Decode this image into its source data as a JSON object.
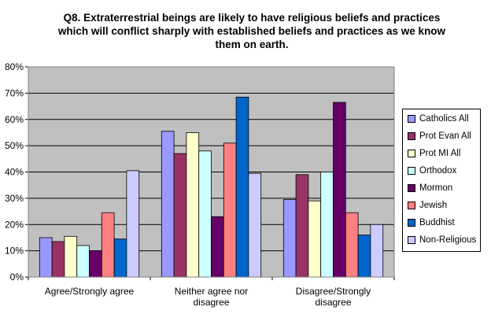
{
  "chart_data": {
    "type": "bar",
    "title_lines": [
      "Q8. Extraterrestrial beings are likely to have religious beliefs and practices",
      "which will conflict sharply with established beliefs and practices as we know",
      "them on earth."
    ],
    "categories": [
      [
        "Agree/Strongly agree"
      ],
      [
        "Neither agree nor",
        "disagree"
      ],
      [
        "Disagree/Strongly",
        "disagree"
      ]
    ],
    "ylim": [
      0,
      80
    ],
    "yticks": [
      0,
      10,
      20,
      30,
      40,
      50,
      60,
      70,
      80
    ],
    "ytick_labels": [
      "0%",
      "10%",
      "20%",
      "30%",
      "40%",
      "50%",
      "60%",
      "70%",
      "80%"
    ],
    "grid": true,
    "plot_background": "#c0c0c0",
    "legend_position": "right",
    "series": [
      {
        "name": "Catholics All",
        "color": "#9999ff",
        "values": [
          15,
          55.5,
          29.5
        ]
      },
      {
        "name": "Prot Evan All",
        "color": "#993366",
        "values": [
          13.5,
          47,
          39
        ]
      },
      {
        "name": "Prot MI All",
        "color": "#ffffcc",
        "values": [
          15.5,
          55,
          29
        ]
      },
      {
        "name": "Orthodox",
        "color": "#ccffff",
        "values": [
          12,
          48,
          40
        ]
      },
      {
        "name": "Mormon",
        "color": "#660066",
        "values": [
          10,
          23,
          66.5
        ]
      },
      {
        "name": "Jewish",
        "color": "#ff8080",
        "values": [
          24.5,
          51,
          24.5
        ]
      },
      {
        "name": "Buddhist",
        "color": "#0066cc",
        "values": [
          14.5,
          68.5,
          16
        ]
      },
      {
        "name": "Non-Religious",
        "color": "#ccccff",
        "values": [
          40.5,
          39.5,
          20
        ]
      }
    ]
  }
}
